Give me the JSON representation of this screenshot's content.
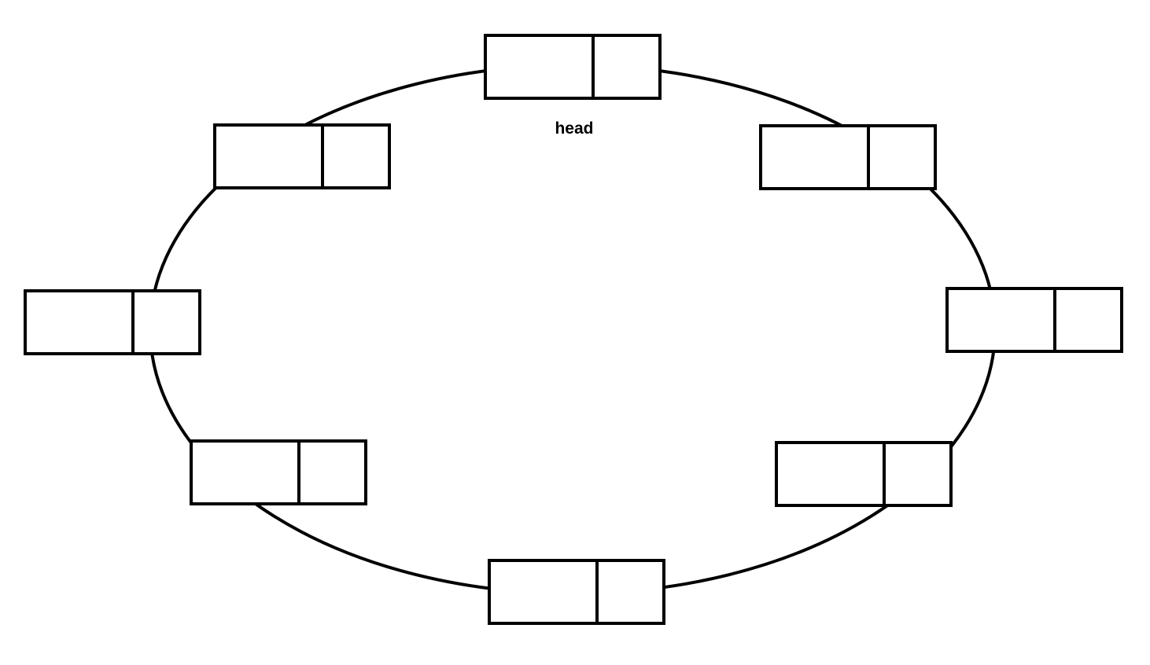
{
  "diagram": {
    "type": "circular-linked-list",
    "node_count": 8,
    "head_label": "head",
    "colors": {
      "stroke": "#000000",
      "background": "#ffffff"
    }
  }
}
